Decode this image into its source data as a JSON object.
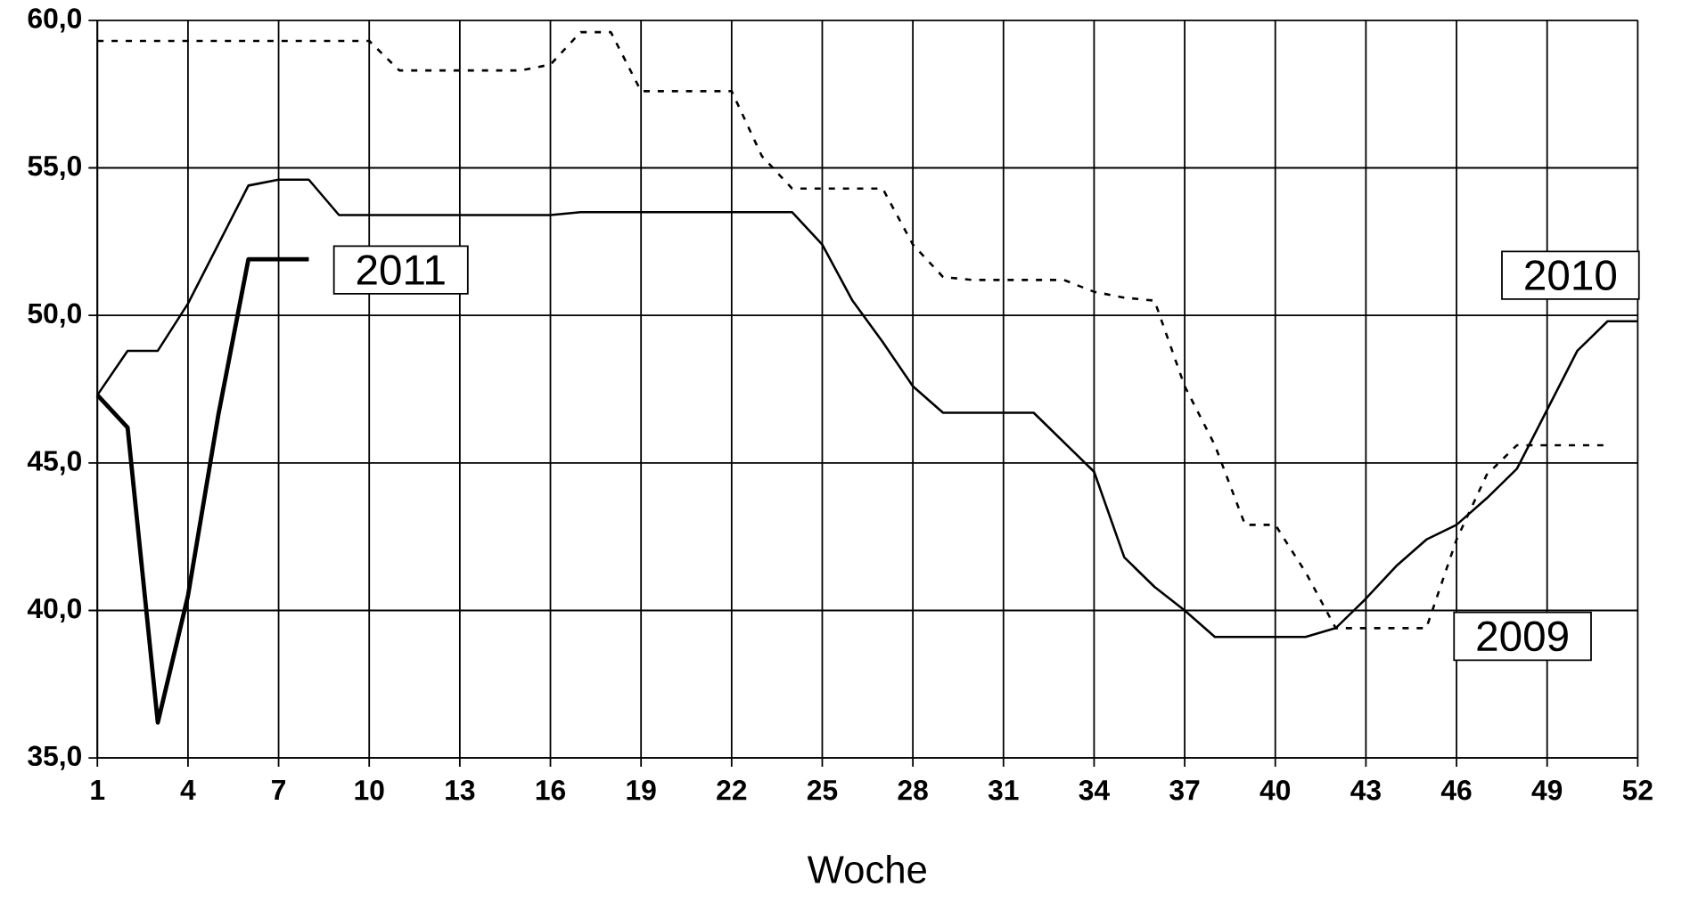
{
  "chart_data": {
    "type": "line",
    "xlabel": "Woche",
    "x": [
      1,
      2,
      3,
      4,
      5,
      6,
      7,
      8,
      9,
      10,
      11,
      12,
      13,
      14,
      15,
      16,
      17,
      18,
      19,
      20,
      21,
      22,
      23,
      24,
      25,
      26,
      27,
      28,
      29,
      30,
      31,
      32,
      33,
      34,
      35,
      36,
      37,
      38,
      39,
      40,
      41,
      42,
      43,
      44,
      45,
      46,
      47,
      48,
      49,
      50,
      51,
      52
    ],
    "series": [
      {
        "name": "2009",
        "color": "#000000",
        "line_style": "dashed",
        "values": [
          59.3,
          59.3,
          59.3,
          59.3,
          59.3,
          59.3,
          59.3,
          59.3,
          59.3,
          59.3,
          58.3,
          58.3,
          58.3,
          58.3,
          58.3,
          58.5,
          59.6,
          59.6,
          57.6,
          57.6,
          57.6,
          57.6,
          55.4,
          54.3,
          54.3,
          54.3,
          54.3,
          52.4,
          51.3,
          51.2,
          51.2,
          51.2,
          51.2,
          50.8,
          50.6,
          50.5,
          47.6,
          45.6,
          42.9,
          42.9,
          41.3,
          39.4,
          39.4,
          39.4,
          39.4,
          42.4,
          44.6,
          45.6,
          45.6,
          45.6,
          45.6,
          null
        ]
      },
      {
        "name": "2010",
        "color": "#000000",
        "line_style": "solid",
        "values": [
          47.3,
          48.8,
          48.8,
          50.4,
          52.4,
          54.4,
          54.6,
          54.6,
          53.4,
          53.4,
          53.4,
          53.4,
          53.4,
          53.4,
          53.4,
          53.4,
          53.5,
          53.5,
          53.5,
          53.5,
          53.5,
          53.5,
          53.5,
          53.5,
          52.4,
          50.5,
          49.1,
          47.6,
          46.7,
          46.7,
          46.7,
          46.7,
          45.7,
          44.7,
          41.8,
          40.8,
          40.0,
          39.1,
          39.1,
          39.1,
          39.1,
          39.4,
          40.4,
          41.5,
          42.4,
          42.9,
          43.8,
          44.8,
          46.8,
          48.8,
          49.8,
          49.8
        ]
      },
      {
        "name": "2011",
        "color": "#000000",
        "line_style": "solid",
        "values": [
          47.3,
          46.2,
          36.2,
          40.5,
          46.6,
          51.9,
          51.9,
          51.9,
          null,
          null,
          null,
          null,
          null,
          null,
          null,
          null,
          null,
          null,
          null,
          null,
          null,
          null,
          null,
          null,
          null,
          null,
          null,
          null,
          null,
          null,
          null,
          null,
          null,
          null,
          null,
          null,
          null,
          null,
          null,
          null,
          null,
          null,
          null,
          null,
          null,
          null,
          null,
          null,
          null,
          null,
          null,
          null
        ]
      }
    ],
    "xlim": [
      1,
      52
    ],
    "xticks": [
      1,
      4,
      7,
      10,
      13,
      16,
      19,
      22,
      25,
      28,
      31,
      34,
      37,
      40,
      43,
      46,
      49,
      52
    ],
    "ylim": [
      35,
      60
    ],
    "yticks": [
      {
        "value": 35,
        "label": "35,0"
      },
      {
        "value": 40,
        "label": "40,0"
      },
      {
        "value": 45,
        "label": "45,0"
      },
      {
        "value": 50,
        "label": "50,0"
      },
      {
        "value": 55,
        "label": "55,0"
      },
      {
        "value": 60,
        "label": "60,0"
      }
    ],
    "grid": true,
    "legend": false,
    "marker": "none"
  }
}
